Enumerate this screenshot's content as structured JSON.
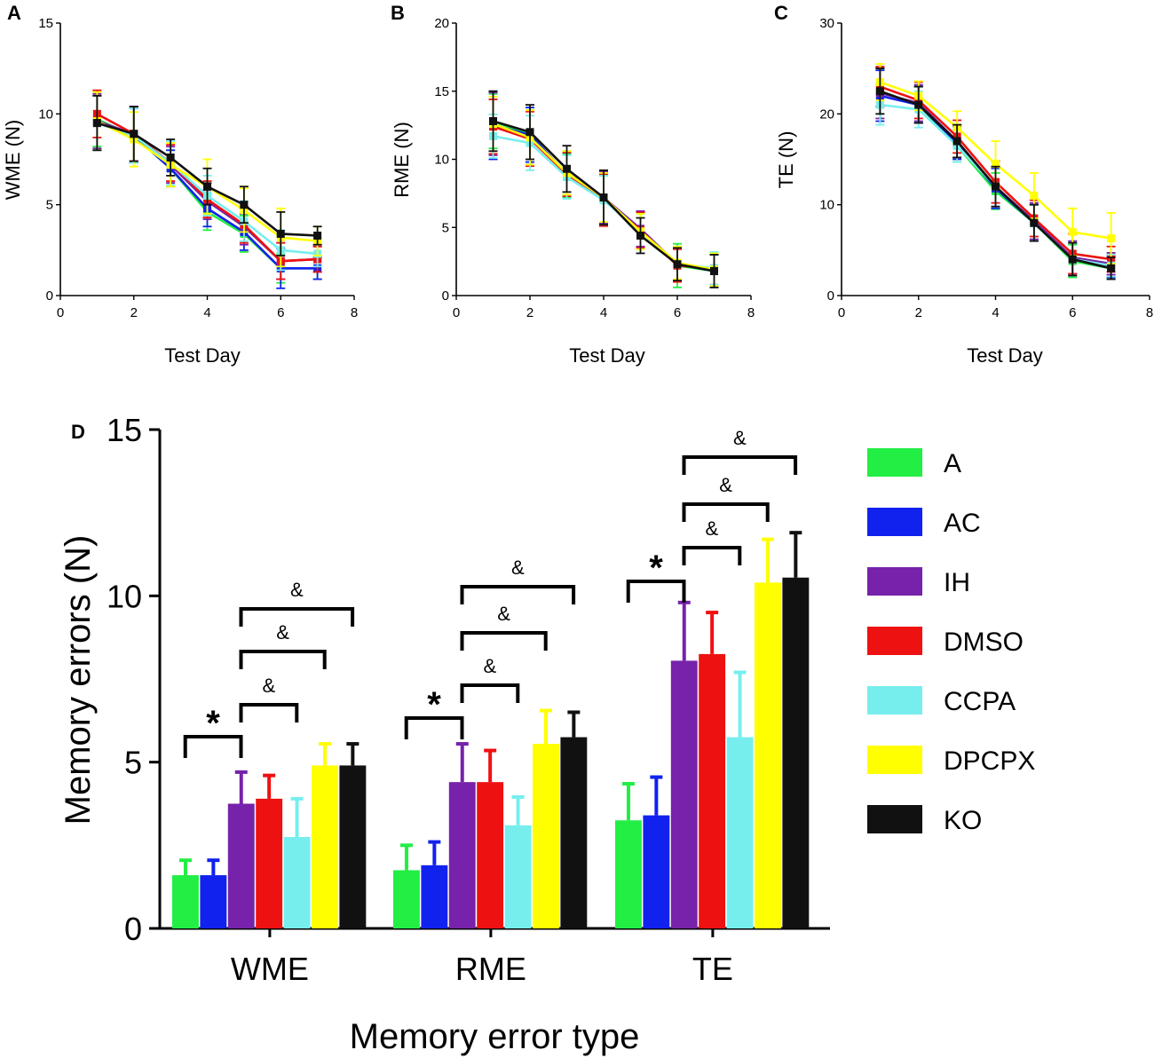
{
  "series_colors": {
    "A": "#22ee44",
    "AC": "#1122ee",
    "IH": "#7722aa",
    "DMSO": "#ee1111",
    "CCPA": "#77eeee",
    "DPCPX": "#ffff00",
    "KO": "#111111"
  },
  "chart_data": [
    {
      "panel": "A",
      "type": "line",
      "xlabel": "Test Day",
      "ylabel": "WME (N)",
      "xlim": [
        0,
        8
      ],
      "ylim": [
        0,
        15
      ],
      "xticks": [
        0,
        2,
        4,
        6,
        8
      ],
      "yticks": [
        0,
        5,
        10,
        15
      ],
      "x": [
        1,
        2,
        3,
        4,
        5,
        6,
        7
      ],
      "series": [
        {
          "name": "A",
          "values": [
            9.7,
            8.8,
            7.0,
            4.6,
            3.4,
            1.5,
            1.5
          ],
          "err": [
            1.5,
            1.5,
            1.0,
            1.0,
            1.0,
            0.8,
            0.6
          ]
        },
        {
          "name": "AC",
          "values": [
            9.5,
            8.8,
            7.0,
            4.8,
            3.5,
            1.5,
            1.5
          ],
          "err": [
            1.5,
            1.5,
            1.0,
            1.0,
            1.0,
            1.1,
            0.6
          ]
        },
        {
          "name": "IH",
          "values": [
            9.6,
            8.9,
            7.2,
            5.2,
            3.8,
            1.9,
            2.0
          ],
          "err": [
            1.5,
            1.5,
            1.0,
            1.0,
            1.0,
            1.0,
            0.7
          ]
        },
        {
          "name": "DMSO",
          "values": [
            10.0,
            8.9,
            7.3,
            5.3,
            3.9,
            1.9,
            2.0
          ],
          "err": [
            1.3,
            1.5,
            1.0,
            1.0,
            1.0,
            1.0,
            0.7
          ]
        },
        {
          "name": "CCPA",
          "values": [
            9.5,
            8.8,
            7.3,
            5.5,
            4.1,
            2.5,
            2.3
          ],
          "err": [
            1.5,
            1.5,
            1.2,
            1.1,
            1.1,
            1.1,
            0.7
          ]
        },
        {
          "name": "DPCPX",
          "values": [
            9.6,
            8.6,
            7.2,
            6.0,
            4.7,
            3.2,
            3.0
          ],
          "err": [
            1.6,
            1.5,
            1.2,
            1.5,
            1.2,
            1.6,
            0.8
          ]
        },
        {
          "name": "KO",
          "values": [
            9.5,
            8.9,
            7.6,
            6.0,
            5.0,
            3.4,
            3.3
          ],
          "err": [
            1.5,
            1.5,
            1.0,
            1.0,
            1.0,
            1.2,
            0.5
          ]
        }
      ]
    },
    {
      "panel": "B",
      "type": "line",
      "xlabel": "Test Day",
      "ylabel": "RME (N)",
      "xlim": [
        0,
        8
      ],
      "ylim": [
        0,
        20
      ],
      "xticks": [
        0,
        2,
        4,
        6,
        8
      ],
      "yticks": [
        0,
        5,
        10,
        15,
        20
      ],
      "x": [
        1,
        2,
        3,
        4,
        5,
        6,
        7
      ],
      "series": [
        {
          "name": "A",
          "values": [
            12.8,
            11.8,
            8.8,
            7.0,
            4.8,
            2.2,
            1.8
          ],
          "err": [
            2.0,
            2.0,
            1.6,
            1.8,
            1.3,
            1.6,
            1.2
          ]
        },
        {
          "name": "AC",
          "values": [
            12.5,
            11.8,
            8.9,
            7.1,
            4.8,
            2.3,
            1.8
          ],
          "err": [
            2.5,
            2.0,
            1.6,
            1.9,
            1.3,
            1.2,
            1.2
          ]
        },
        {
          "name": "IH",
          "values": [
            12.6,
            11.6,
            9.0,
            7.2,
            4.9,
            2.3,
            1.9
          ],
          "err": [
            2.3,
            2.0,
            1.6,
            1.9,
            1.3,
            1.2,
            1.2
          ]
        },
        {
          "name": "DMSO",
          "values": [
            12.4,
            11.5,
            8.9,
            7.0,
            4.8,
            2.2,
            2.0
          ],
          "err": [
            2.0,
            2.0,
            1.6,
            1.9,
            1.3,
            1.2,
            1.2
          ]
        },
        {
          "name": "CCPA",
          "values": [
            11.7,
            11.2,
            8.7,
            7.0,
            4.7,
            2.3,
            2.0
          ],
          "err": [
            1.6,
            2.0,
            1.6,
            1.8,
            1.3,
            1.2,
            1.2
          ]
        },
        {
          "name": "DPCPX",
          "values": [
            12.6,
            11.6,
            9.0,
            7.2,
            4.7,
            2.4,
            1.9
          ],
          "err": [
            2.0,
            2.0,
            1.6,
            1.8,
            1.3,
            1.2,
            1.2
          ]
        },
        {
          "name": "KO",
          "values": [
            12.8,
            12.0,
            9.3,
            7.2,
            4.4,
            2.3,
            1.8
          ],
          "err": [
            2.2,
            2.0,
            1.7,
            2.0,
            1.3,
            1.2,
            1.2
          ]
        }
      ]
    },
    {
      "panel": "C",
      "type": "line",
      "xlabel": "Test Day",
      "ylabel": "TE (N)",
      "xlim": [
        0,
        8
      ],
      "ylim": [
        0,
        30
      ],
      "xticks": [
        0,
        2,
        4,
        6,
        8
      ],
      "yticks": [
        0,
        10,
        20,
        30
      ],
      "x": [
        1,
        2,
        3,
        4,
        5,
        6,
        7
      ],
      "series": [
        {
          "name": "A",
          "values": [
            22.5,
            21.0,
            16.5,
            11.5,
            8.0,
            3.8,
            3.0
          ],
          "err": [
            2.5,
            2.0,
            1.8,
            2.0,
            2.0,
            1.8,
            1.2
          ]
        },
        {
          "name": "AC",
          "values": [
            22.0,
            21.0,
            16.8,
            11.8,
            8.0,
            4.0,
            3.2
          ],
          "err": [
            2.8,
            2.0,
            1.8,
            2.2,
            2.0,
            1.8,
            1.2
          ]
        },
        {
          "name": "IH",
          "values": [
            22.3,
            21.2,
            17.0,
            12.0,
            8.2,
            4.2,
            3.5
          ],
          "err": [
            2.8,
            2.0,
            1.8,
            2.2,
            2.0,
            1.8,
            1.2
          ]
        },
        {
          "name": "DMSO",
          "values": [
            23.0,
            21.5,
            17.5,
            12.5,
            8.5,
            4.6,
            4.0
          ],
          "err": [
            2.2,
            2.0,
            1.8,
            2.3,
            2.0,
            2.2,
            1.4
          ]
        },
        {
          "name": "CCPA",
          "values": [
            21.0,
            20.5,
            16.5,
            12.0,
            8.0,
            4.0,
            3.3
          ],
          "err": [
            2.2,
            2.0,
            1.8,
            2.2,
            2.0,
            1.8,
            1.2
          ]
        },
        {
          "name": "DPCPX",
          "values": [
            23.5,
            22.0,
            18.5,
            14.5,
            11.0,
            7.0,
            6.3
          ],
          "err": [
            2.0,
            1.6,
            1.8,
            2.5,
            2.5,
            2.6,
            2.8
          ]
        },
        {
          "name": "KO",
          "values": [
            22.5,
            21.0,
            17.0,
            12.0,
            8.0,
            4.0,
            3.0
          ],
          "err": [
            2.5,
            2.0,
            1.8,
            2.2,
            2.0,
            1.8,
            1.2
          ]
        }
      ]
    },
    {
      "panel": "D",
      "type": "bar",
      "xlabel": "Memory error type",
      "ylabel": "Memory errors (N)",
      "ylim": [
        0,
        15
      ],
      "yticks": [
        0,
        5,
        10,
        15
      ],
      "categories": [
        "WME",
        "RME",
        "TE"
      ],
      "legend_position": "right",
      "series": [
        {
          "name": "A",
          "values": [
            1.6,
            1.75,
            3.25
          ],
          "err": [
            0.45,
            0.75,
            1.1
          ]
        },
        {
          "name": "AC",
          "values": [
            1.6,
            1.9,
            3.4
          ],
          "err": [
            0.45,
            0.7,
            1.15
          ]
        },
        {
          "name": "IH",
          "values": [
            3.75,
            4.4,
            8.05
          ],
          "err": [
            0.95,
            1.15,
            1.75
          ]
        },
        {
          "name": "DMSO",
          "values": [
            3.9,
            4.4,
            8.25
          ],
          "err": [
            0.7,
            0.95,
            1.25
          ]
        },
        {
          "name": "CCPA",
          "values": [
            2.75,
            3.1,
            5.75
          ],
          "err": [
            1.15,
            0.85,
            1.95
          ]
        },
        {
          "name": "DPCPX",
          "values": [
            4.9,
            5.55,
            10.4
          ],
          "err": [
            0.65,
            1.0,
            1.3
          ]
        },
        {
          "name": "KO",
          "values": [
            4.9,
            5.75,
            10.55
          ],
          "err": [
            0.65,
            0.75,
            1.35
          ]
        }
      ],
      "annotations": {
        "star": "*",
        "amp": "&",
        "brackets": [
          {
            "category": 0,
            "from": "A",
            "to": "IH",
            "label": "*",
            "level": 0
          },
          {
            "category": 0,
            "from": "IH",
            "to": "CCPA",
            "label": "&",
            "level": 1
          },
          {
            "category": 0,
            "from": "IH",
            "to": "DPCPX",
            "label": "&",
            "level": 2
          },
          {
            "category": 0,
            "from": "IH",
            "to": "KO",
            "label": "&",
            "level": 3
          },
          {
            "category": 1,
            "from": "A",
            "to": "IH",
            "label": "*",
            "level": 0
          },
          {
            "category": 1,
            "from": "IH",
            "to": "CCPA",
            "label": "&",
            "level": 1
          },
          {
            "category": 1,
            "from": "IH",
            "to": "DPCPX",
            "label": "&",
            "level": 2
          },
          {
            "category": 1,
            "from": "IH",
            "to": "KO",
            "label": "&",
            "level": 3
          },
          {
            "category": 2,
            "from": "A",
            "to": "IH",
            "label": "*",
            "level": 0
          },
          {
            "category": 2,
            "from": "IH",
            "to": "CCPA",
            "label": "&",
            "level": 1
          },
          {
            "category": 2,
            "from": "IH",
            "to": "DPCPX",
            "label": "&",
            "level": 2
          },
          {
            "category": 2,
            "from": "IH",
            "to": "KO",
            "label": "&",
            "level": 3
          }
        ]
      }
    }
  ]
}
